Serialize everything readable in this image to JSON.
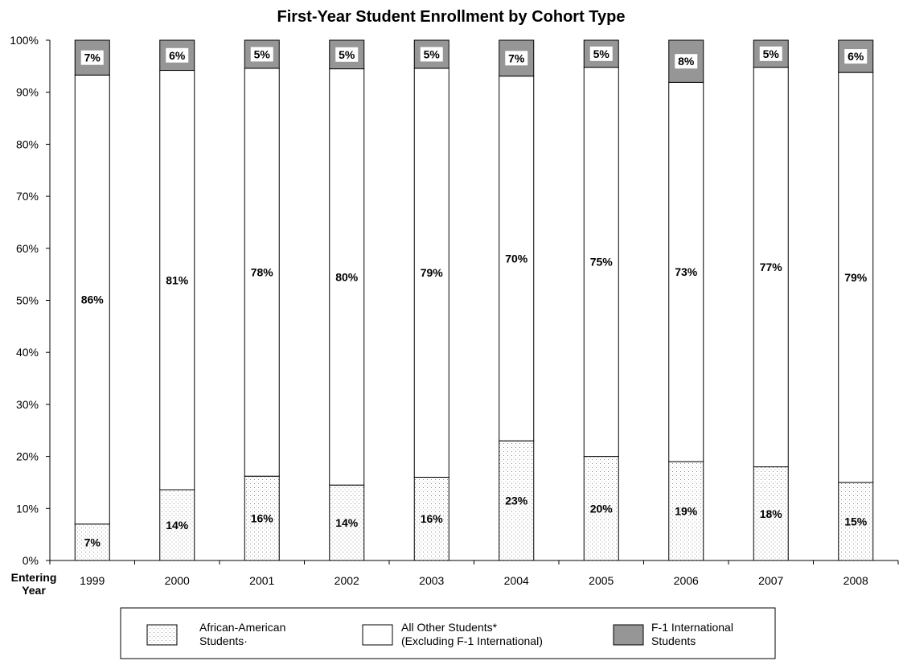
{
  "chart_data": {
    "type": "bar",
    "stacked": true,
    "normalized": true,
    "title": "First-Year Student Enrollment by Cohort Type",
    "xlabel": "Entering Year",
    "xlabel_lines": [
      "Entering",
      "Year"
    ],
    "ylabel": "",
    "ylim": [
      0,
      100
    ],
    "y_ticks": [
      "0%",
      "10%",
      "20%",
      "30%",
      "40%",
      "50%",
      "60%",
      "70%",
      "80%",
      "90%",
      "100%"
    ],
    "grid": false,
    "legend_position": "bottom",
    "categories": [
      "1999",
      "2000",
      "2001",
      "2002",
      "2003",
      "2004",
      "2005",
      "2006",
      "2007",
      "2008"
    ],
    "series": [
      {
        "key": "aa",
        "name": "African-American Students·",
        "legend_lines": [
          "African-American",
          "Students·"
        ],
        "fill": "dotted",
        "values": [
          7,
          13.6,
          16.2,
          14.5,
          16,
          23,
          20,
          19,
          18,
          15
        ],
        "labels": [
          "7%",
          "14%",
          "16%",
          "14%",
          "16%",
          "23%",
          "20%",
          "19%",
          "18%",
          "15%"
        ]
      },
      {
        "key": "other",
        "name": "All Other Students* (Excluding F-1 International)",
        "legend_lines": [
          "All Other Students*",
          "(Excluding F-1 International)"
        ],
        "fill": "#ffffff",
        "values": [
          86.3,
          80.6,
          78.4,
          80,
          78.6,
          70.1,
          74.8,
          72.9,
          76.8,
          78.8
        ],
        "labels": [
          "86%",
          "81%",
          "78%",
          "80%",
          "79%",
          "70%",
          "75%",
          "73%",
          "77%",
          "79%"
        ]
      },
      {
        "key": "f1",
        "name": "F-1 International Students",
        "legend_lines": [
          "F-1 International",
          "Students"
        ],
        "fill": "#969696",
        "values": [
          6.7,
          5.8,
          5.4,
          5.5,
          5.4,
          6.9,
          5.2,
          8.1,
          5.2,
          6.2
        ],
        "labels": [
          "7%",
          "6%",
          "5%",
          "5%",
          "5%",
          "7%",
          "5%",
          "8%",
          "5%",
          "6%"
        ]
      }
    ]
  }
}
